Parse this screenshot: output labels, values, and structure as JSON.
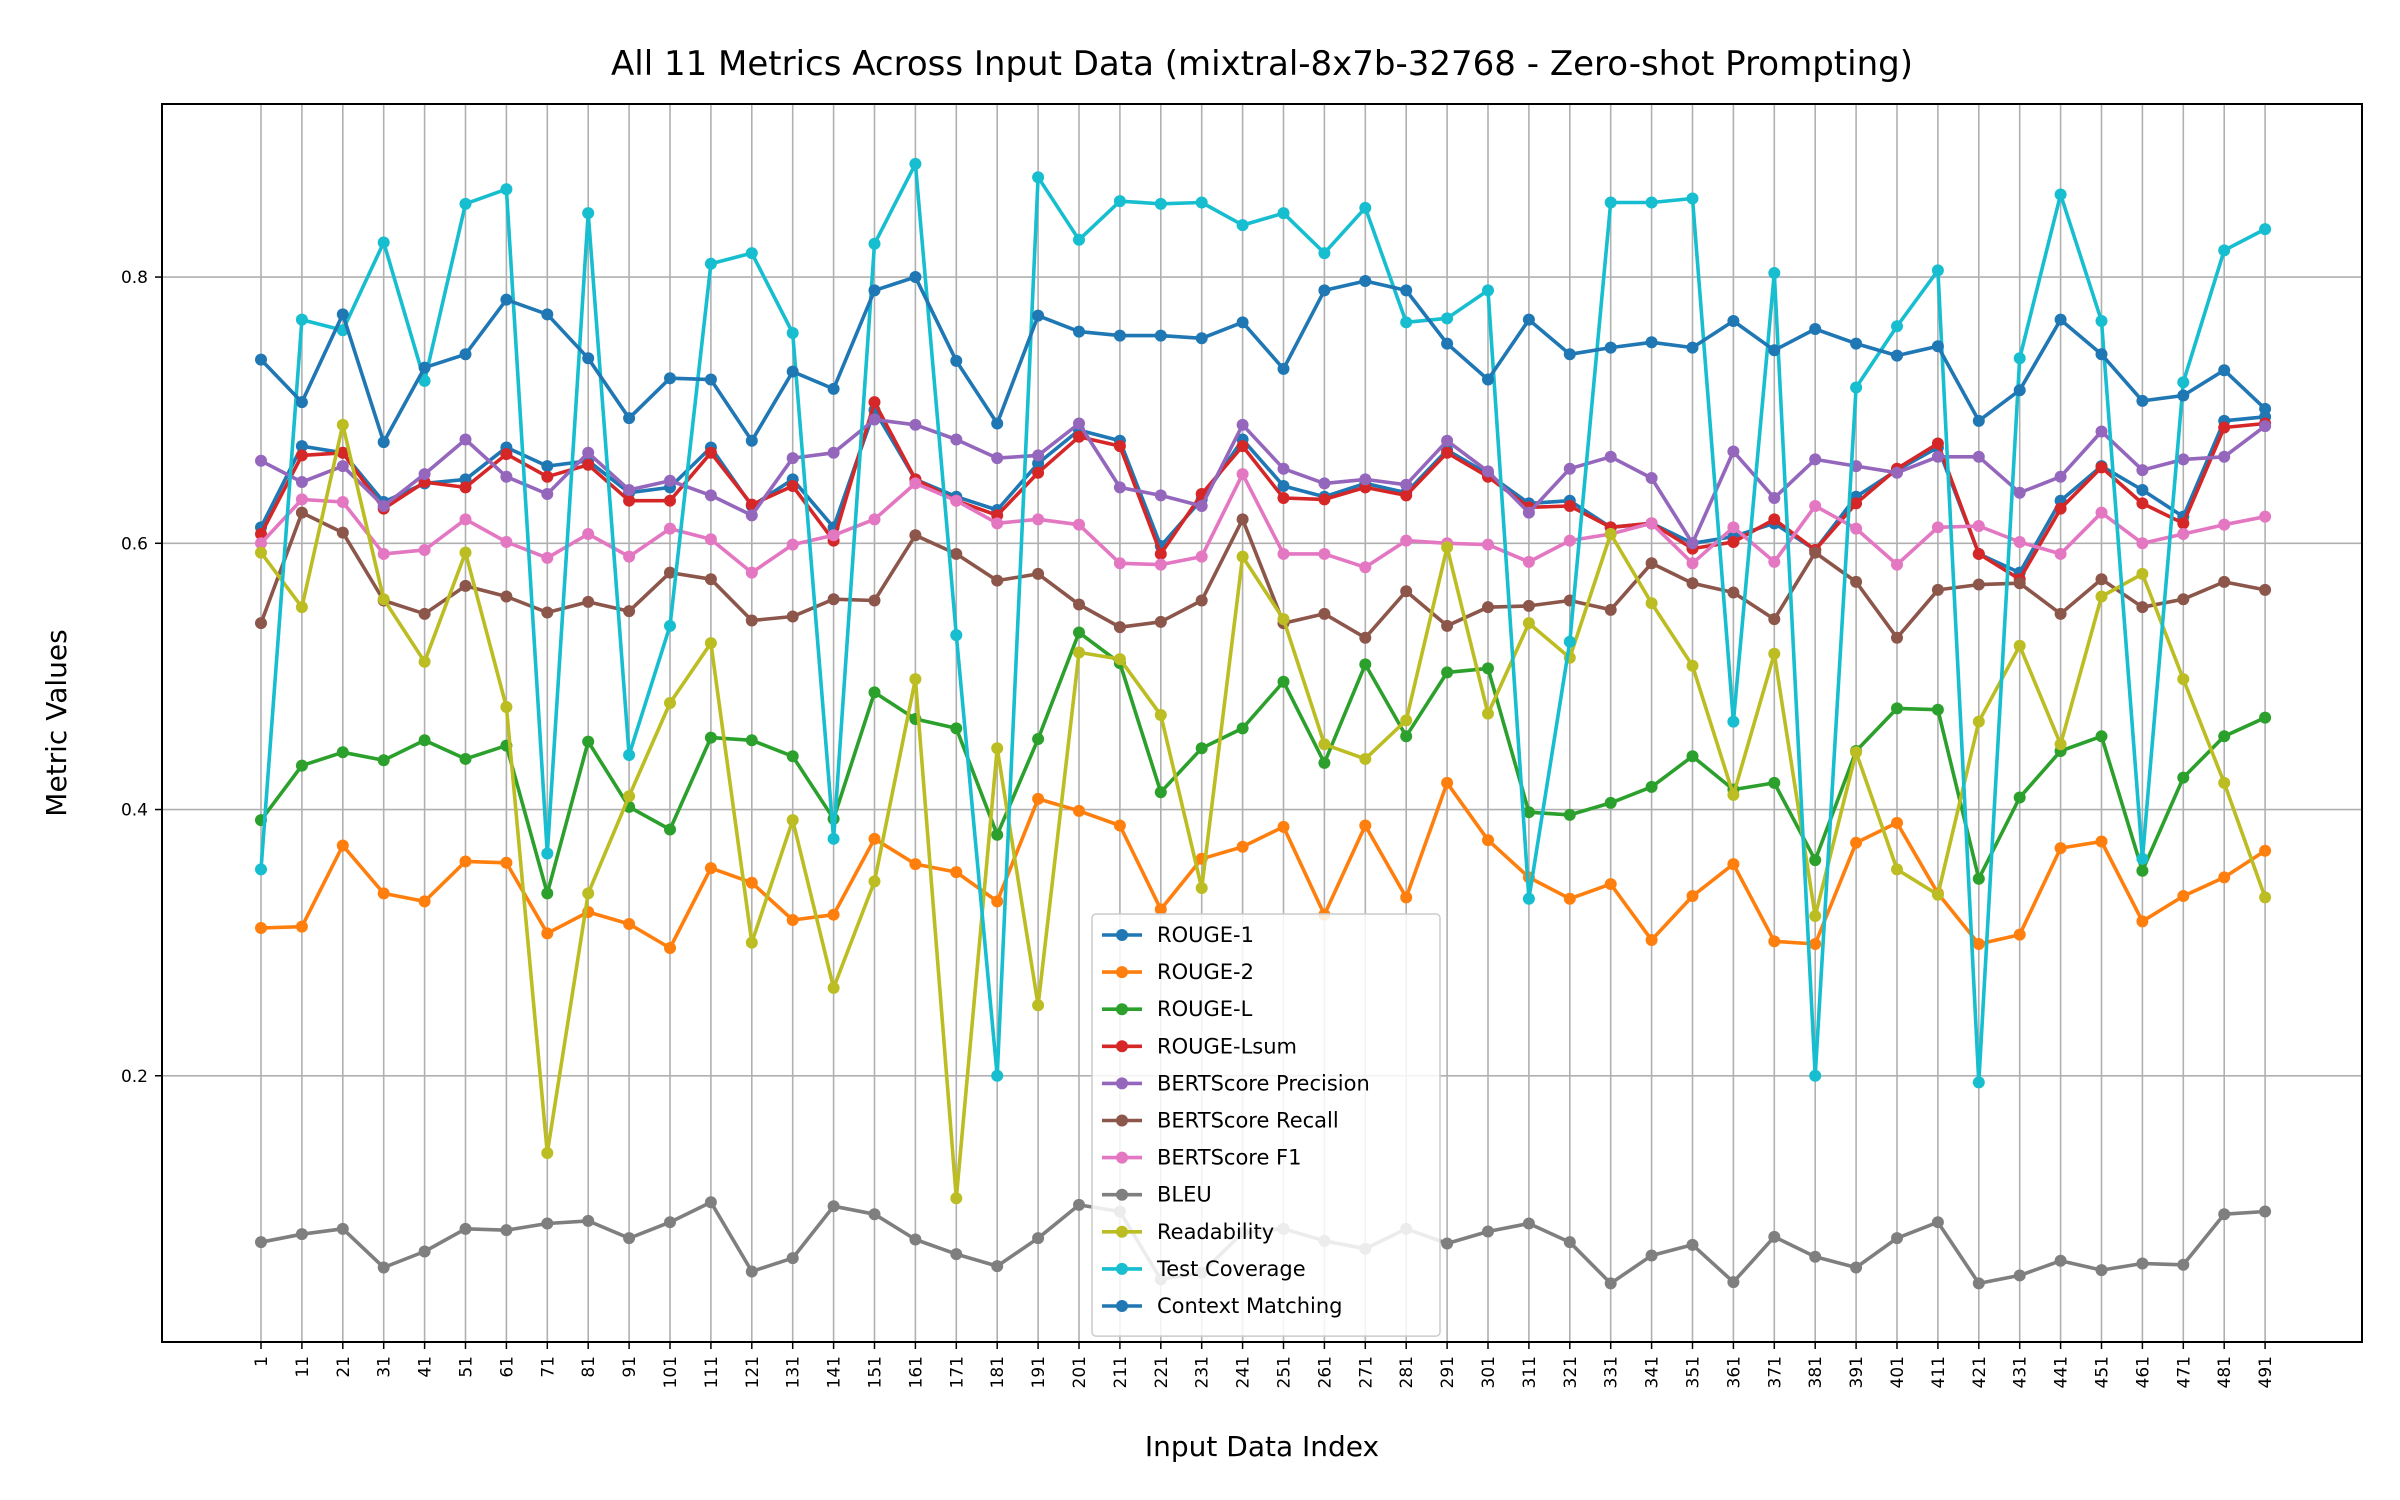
{
  "chart_data": {
    "type": "line",
    "title": "All 11 Metrics Across Input Data (mixtral-8x7b-32768 - Zero-shot Prompting)",
    "xlabel": "Input Data Index",
    "ylabel": "Metric Values",
    "ylim": [
      0.0,
      0.93
    ],
    "yticks": [
      0.2,
      0.4,
      0.6,
      0.8
    ],
    "grid": true,
    "legend_position": "lower-center",
    "x": [
      1,
      11,
      21,
      31,
      41,
      51,
      61,
      71,
      81,
      91,
      101,
      111,
      121,
      131,
      141,
      151,
      161,
      171,
      181,
      191,
      201,
      211,
      221,
      231,
      241,
      251,
      261,
      271,
      281,
      291,
      301,
      311,
      321,
      331,
      341,
      351,
      361,
      371,
      381,
      391,
      401,
      411,
      421,
      431,
      441,
      451,
      461,
      471,
      481,
      491
    ],
    "series": [
      {
        "name": "ROUGE-1",
        "color": "#1f77b4",
        "values": [
          0.612,
          0.673,
          0.668,
          0.631,
          0.645,
          0.648,
          0.672,
          0.658,
          0.662,
          0.638,
          0.642,
          0.672,
          0.628,
          0.648,
          0.612,
          0.7,
          0.648,
          0.635,
          0.625,
          0.66,
          0.685,
          0.677,
          0.598,
          0.633,
          0.678,
          0.643,
          0.635,
          0.645,
          0.638,
          0.67,
          0.652,
          0.63,
          0.632,
          0.612,
          0.615,
          0.6,
          0.605,
          0.615,
          0.595,
          0.635,
          0.655,
          0.672,
          0.592,
          0.578,
          0.632,
          0.658,
          0.64,
          0.62,
          0.692,
          0.695
        ]
      },
      {
        "name": "ROUGE-2",
        "color": "#ff7f0e",
        "values": [
          0.311,
          0.312,
          0.373,
          0.337,
          0.331,
          0.361,
          0.36,
          0.307,
          0.323,
          0.314,
          0.296,
          0.356,
          0.345,
          0.317,
          0.321,
          0.378,
          0.359,
          0.353,
          0.331,
          0.408,
          0.399,
          0.388,
          0.325,
          0.363,
          0.372,
          0.387,
          0.321,
          0.388,
          0.334,
          0.42,
          0.377,
          0.349,
          0.333,
          0.344,
          0.302,
          0.335,
          0.359,
          0.301,
          0.299,
          0.375,
          0.39,
          0.337,
          0.299,
          0.306,
          0.371,
          0.376,
          0.316,
          0.335,
          0.349,
          0.369
        ]
      },
      {
        "name": "ROUGE-L",
        "color": "#2ca02c",
        "values": [
          0.392,
          0.433,
          0.443,
          0.437,
          0.452,
          0.438,
          0.448,
          0.337,
          0.451,
          0.402,
          0.385,
          0.454,
          0.452,
          0.44,
          0.393,
          0.488,
          0.468,
          0.461,
          0.381,
          0.453,
          0.533,
          0.51,
          0.413,
          0.446,
          0.461,
          0.496,
          0.435,
          0.509,
          0.455,
          0.503,
          0.506,
          0.398,
          0.396,
          0.405,
          0.417,
          0.44,
          0.415,
          0.42,
          0.362,
          0.444,
          0.476,
          0.475,
          0.348,
          0.409,
          0.444,
          0.455,
          0.354,
          0.424,
          0.455,
          0.469
        ]
      },
      {
        "name": "ROUGE-Lsum",
        "color": "#d62728",
        "values": [
          0.607,
          0.666,
          0.668,
          0.626,
          0.646,
          0.642,
          0.667,
          0.65,
          0.659,
          0.632,
          0.632,
          0.668,
          0.629,
          0.643,
          0.602,
          0.706,
          0.648,
          0.632,
          0.621,
          0.653,
          0.68,
          0.673,
          0.592,
          0.637,
          0.673,
          0.634,
          0.633,
          0.642,
          0.636,
          0.668,
          0.65,
          0.627,
          0.628,
          0.612,
          0.615,
          0.596,
          0.601,
          0.618,
          0.595,
          0.63,
          0.656,
          0.675,
          0.592,
          0.573,
          0.626,
          0.657,
          0.63,
          0.615,
          0.687,
          0.69
        ]
      },
      {
        "name": "BERTScore Precision",
        "color": "#9467bd",
        "values": [
          0.662,
          0.646,
          0.658,
          0.628,
          0.652,
          0.678,
          0.65,
          0.637,
          0.668,
          0.64,
          0.647,
          0.636,
          0.621,
          0.664,
          0.668,
          0.693,
          0.689,
          0.678,
          0.664,
          0.666,
          0.69,
          0.642,
          0.636,
          0.628,
          0.689,
          0.656,
          0.645,
          0.648,
          0.644,
          0.677,
          0.654,
          0.623,
          0.656,
          0.665,
          0.649,
          0.6,
          0.669,
          0.634,
          0.663,
          0.658,
          0.653,
          0.665,
          0.665,
          0.638,
          0.65,
          0.684,
          0.655,
          0.663,
          0.665,
          0.688
        ]
      },
      {
        "name": "BERTScore Recall",
        "color": "#8c564b",
        "values": [
          0.54,
          0.623,
          0.608,
          0.557,
          0.547,
          0.568,
          0.56,
          0.548,
          0.556,
          0.549,
          0.578,
          0.573,
          0.542,
          0.545,
          0.558,
          0.557,
          0.606,
          0.592,
          0.572,
          0.577,
          0.554,
          0.537,
          0.541,
          0.557,
          0.618,
          0.54,
          0.547,
          0.529,
          0.564,
          0.538,
          0.552,
          0.553,
          0.557,
          0.55,
          0.585,
          0.57,
          0.563,
          0.543,
          0.593,
          0.571,
          0.529,
          0.565,
          0.569,
          0.57,
          0.547,
          0.573,
          0.552,
          0.558,
          0.571,
          0.565
        ]
      },
      {
        "name": "BERTScore F1",
        "color": "#e377c2",
        "values": [
          0.6,
          0.633,
          0.631,
          0.592,
          0.595,
          0.618,
          0.601,
          0.589,
          0.607,
          0.59,
          0.611,
          0.603,
          0.578,
          0.599,
          0.606,
          0.618,
          0.645,
          0.632,
          0.615,
          0.618,
          0.614,
          0.585,
          0.584,
          0.59,
          0.652,
          0.592,
          0.592,
          0.582,
          0.602,
          0.6,
          0.599,
          0.586,
          0.602,
          0.607,
          0.615,
          0.585,
          0.612,
          0.586,
          0.628,
          0.611,
          0.584,
          0.612,
          0.613,
          0.601,
          0.592,
          0.623,
          0.6,
          0.607,
          0.614,
          0.62
        ]
      },
      {
        "name": "BLEU",
        "color": "#7f7f7f",
        "values": [
          0.075,
          0.081,
          0.085,
          0.056,
          0.068,
          0.085,
          0.084,
          0.089,
          0.091,
          0.078,
          0.09,
          0.105,
          0.053,
          0.063,
          0.102,
          0.096,
          0.077,
          0.066,
          0.057,
          0.078,
          0.103,
          0.098,
          0.047,
          0.052,
          0.082,
          0.085,
          0.076,
          0.07,
          0.085,
          0.074,
          0.083,
          0.089,
          0.075,
          0.044,
          0.065,
          0.073,
          0.045,
          0.079,
          0.064,
          0.056,
          0.078,
          0.09,
          0.044,
          0.05,
          0.061,
          0.054,
          0.059,
          0.058,
          0.096,
          0.098
        ]
      },
      {
        "name": "Readability",
        "color": "#bcbd22",
        "values": [
          0.593,
          0.552,
          0.689,
          0.558,
          0.511,
          0.593,
          0.477,
          0.142,
          0.337,
          0.41,
          0.48,
          0.525,
          0.3,
          0.392,
          0.266,
          0.346,
          0.498,
          0.108,
          0.446,
          0.253,
          0.518,
          0.513,
          0.471,
          0.341,
          0.59,
          0.543,
          0.449,
          0.438,
          0.467,
          0.597,
          0.472,
          0.54,
          0.514,
          0.607,
          0.555,
          0.508,
          0.411,
          0.517,
          0.32,
          0.443,
          0.355,
          0.336,
          0.466,
          0.523,
          0.449,
          0.56,
          0.577,
          0.498,
          0.42,
          0.334
        ]
      },
      {
        "name": "Test Coverage",
        "color": "#17becf",
        "values": [
          0.355,
          0.768,
          0.76,
          0.826,
          0.722,
          0.855,
          0.866,
          0.367,
          0.848,
          0.441,
          0.538,
          0.81,
          0.818,
          0.758,
          0.378,
          0.825,
          0.885,
          0.531,
          0.2,
          0.875,
          0.828,
          0.857,
          0.855,
          0.856,
          0.839,
          0.848,
          0.818,
          0.852,
          0.766,
          0.769,
          0.79,
          0.333,
          0.526,
          0.856,
          0.856,
          0.859,
          0.466,
          0.803,
          0.2,
          0.717,
          0.763,
          0.805,
          0.195,
          0.739,
          0.862,
          0.767,
          0.363,
          0.721,
          0.82,
          0.836
        ]
      },
      {
        "name": "Context Matching",
        "color": "#1f77b4",
        "values": [
          0.738,
          0.706,
          0.772,
          0.676,
          0.732,
          0.742,
          0.783,
          0.772,
          0.739,
          0.694,
          0.724,
          0.723,
          0.677,
          0.729,
          0.716,
          0.79,
          0.8,
          0.737,
          0.69,
          0.771,
          0.759,
          0.756,
          0.756,
          0.754,
          0.766,
          0.731,
          0.79,
          0.797,
          0.79,
          0.75,
          0.723,
          0.768,
          0.742,
          0.747,
          0.751,
          0.747,
          0.767,
          0.745,
          0.761,
          0.75,
          0.741,
          0.748,
          0.692,
          0.715,
          0.768,
          0.742,
          0.707,
          0.711,
          0.73,
          0.701
        ]
      }
    ]
  }
}
